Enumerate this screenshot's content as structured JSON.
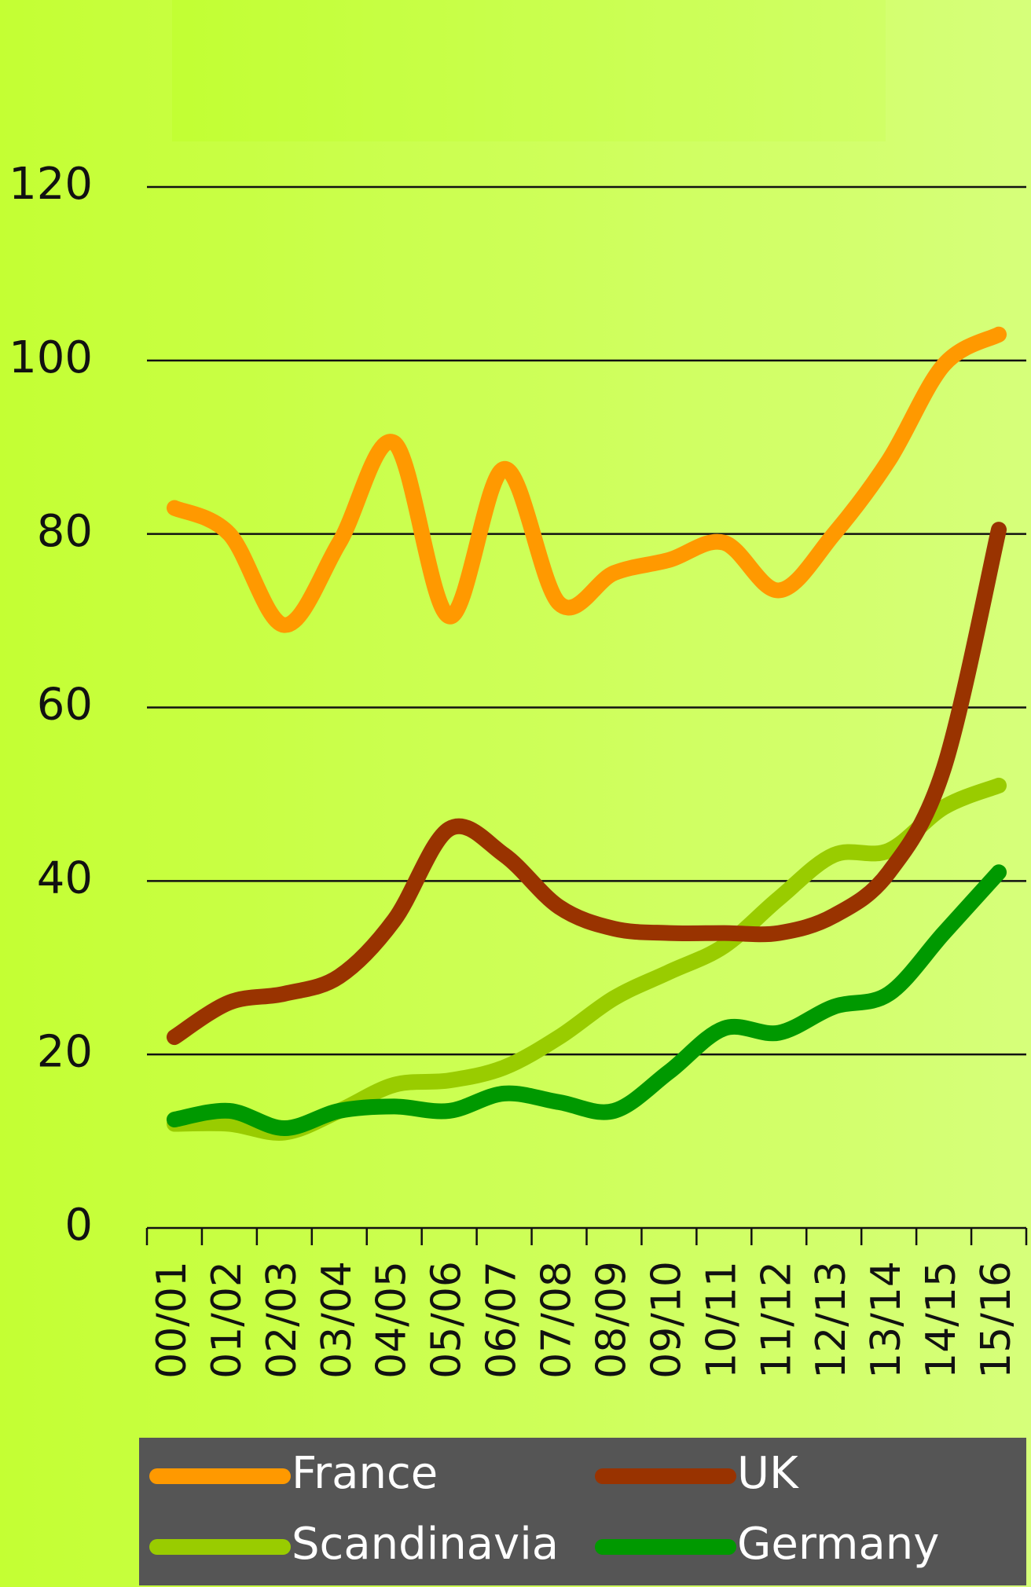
{
  "chart_data": {
    "type": "line",
    "categories": [
      "00/01",
      "01/02",
      "02/03",
      "03/04",
      "04/05",
      "05/06",
      "06/07",
      "07/08",
      "08/09",
      "09/10",
      "10/11",
      "11/12",
      "12/13",
      "13/14",
      "14/15",
      "15/16"
    ],
    "series": [
      {
        "name": "France",
        "color": "#ff9900",
        "values": [
          83,
          80,
          69.5,
          79,
          90.5,
          70.5,
          87.5,
          72,
          75.5,
          77,
          79,
          73.5,
          80,
          88.5,
          99.5,
          103
        ]
      },
      {
        "name": "UK",
        "color": "#993300",
        "values": [
          22,
          26,
          27,
          29,
          35.5,
          46,
          43,
          37,
          34.5,
          34,
          34,
          34,
          36,
          41,
          53,
          80.5
        ]
      },
      {
        "name": "Scandinavia",
        "color": "#99cc00",
        "values": [
          12,
          12,
          11,
          13.5,
          16.5,
          17,
          18.5,
          22,
          26.5,
          29.5,
          32.5,
          38,
          43,
          43.5,
          48.5,
          51
        ]
      },
      {
        "name": "Germany",
        "color": "#009900",
        "values": [
          12.5,
          13.5,
          11.5,
          13.5,
          14,
          13.5,
          15.5,
          14.5,
          13.5,
          18,
          23,
          22.5,
          25.5,
          27,
          34,
          41
        ]
      }
    ],
    "ylim": [
      0,
      120
    ],
    "yticks": [
      0,
      20,
      40,
      60,
      80,
      100,
      120
    ],
    "grid": true
  }
}
